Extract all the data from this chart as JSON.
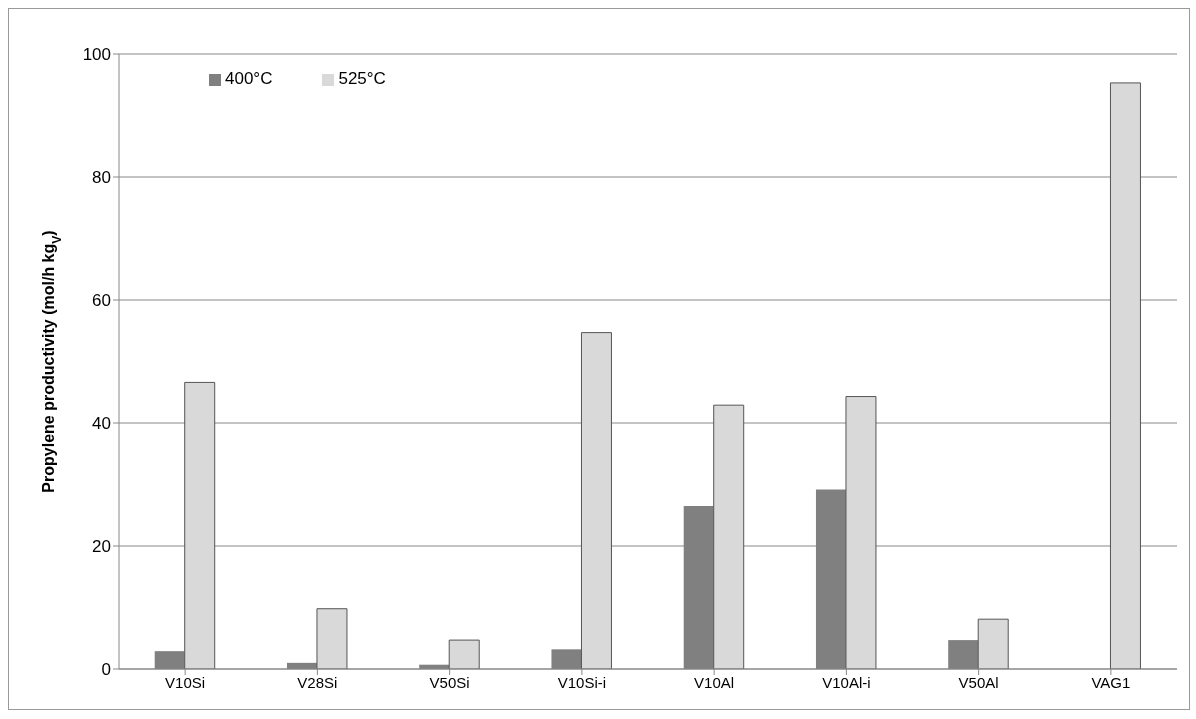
{
  "chart_data": {
    "type": "bar",
    "ylabel": "Propylene productivity (mol/h kg$_{V}$)",
    "categories": [
      "V10Si",
      "V28Si",
      "V50Si",
      "V10Si-i",
      "V10Al",
      "V10Al-i",
      "V50Al",
      "VAG1"
    ],
    "series": [
      {
        "name": "400°C",
        "color": "#808080",
        "values": [
          2.9,
          1.0,
          0.7,
          3.2,
          26.5,
          29.2,
          4.7,
          0
        ]
      },
      {
        "name": "525°C",
        "color": "#d9d9d9",
        "values": [
          46.6,
          9.8,
          4.7,
          54.7,
          42.9,
          44.3,
          8.1,
          95.3
        ]
      }
    ],
    "ylim": [
      0,
      100
    ],
    "yticks": [
      0,
      20,
      40,
      60,
      80,
      100
    ],
    "grid": "y",
    "legend": "top left"
  }
}
